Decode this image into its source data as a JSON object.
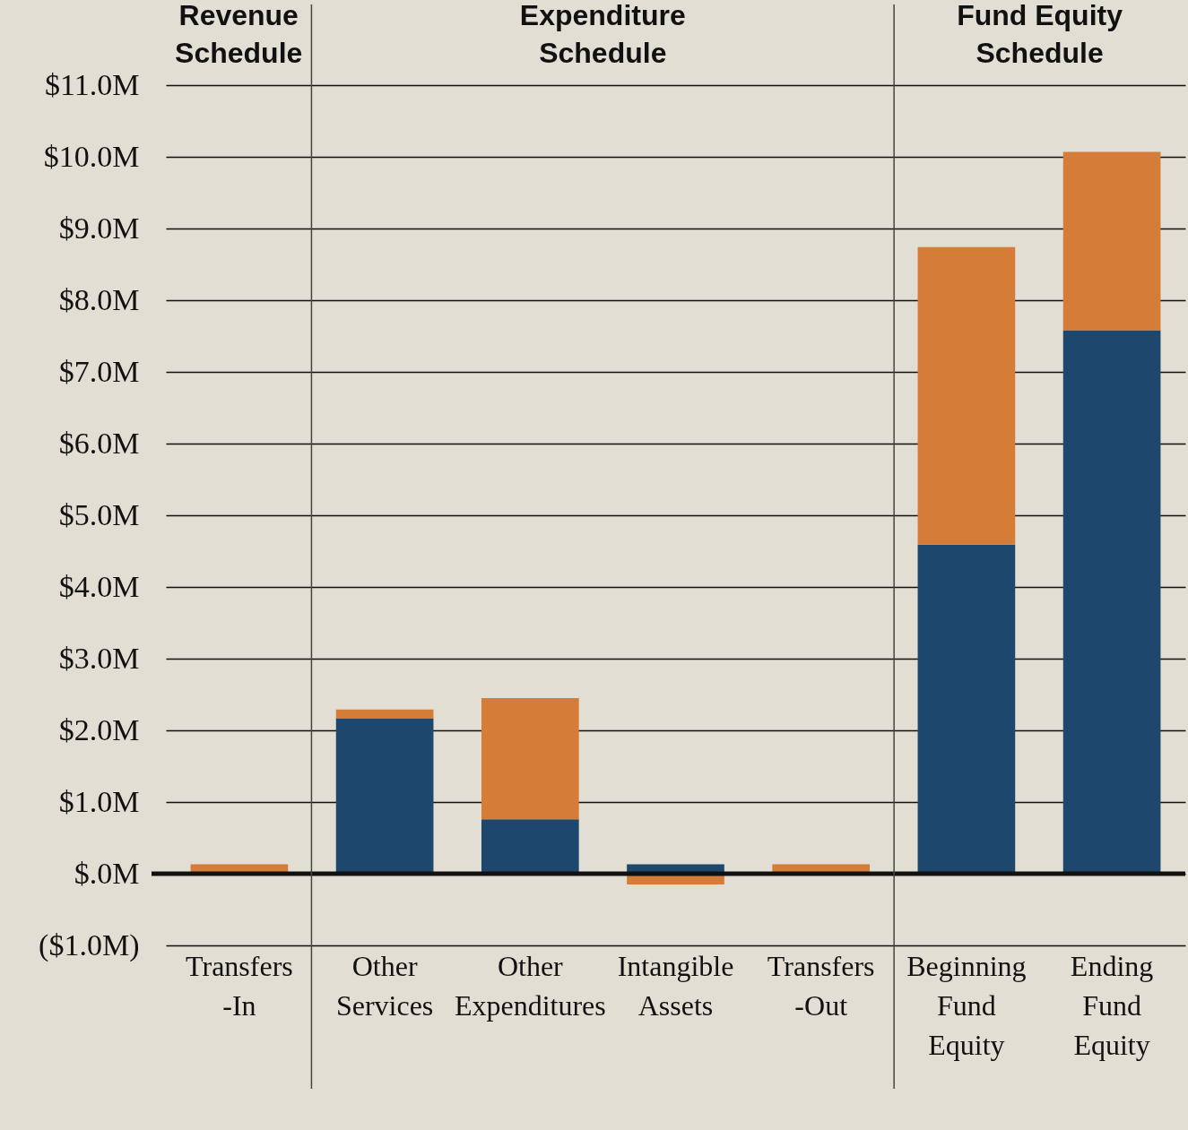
{
  "chart_data": {
    "type": "bar",
    "stacked": true,
    "categories": [
      "Transfers -In",
      "Other Services",
      "Other Expenditures",
      "Intangible Assets",
      "Transfers -Out",
      "Beginning Fund Equity",
      "Ending Fund Equity"
    ],
    "series": [
      {
        "color": "#1d476d",
        "values": [
          0,
          2.17,
          0.76,
          0.13,
          0,
          4.59,
          7.58
        ]
      },
      {
        "color": "#d47c38",
        "values": [
          0.13,
          0.12,
          1.69,
          -0.15,
          0.13,
          4.15,
          2.49
        ]
      }
    ],
    "ylim": [
      -1.0,
      11.0
    ],
    "yticks": [
      {
        "value": -1,
        "label": "($1.0M)"
      },
      {
        "value": 0,
        "label": "$.0M"
      },
      {
        "value": 1,
        "label": "$1.0M"
      },
      {
        "value": 2,
        "label": "$2.0M"
      },
      {
        "value": 3,
        "label": "$3.0M"
      },
      {
        "value": 4,
        "label": "$4.0M"
      },
      {
        "value": 5,
        "label": "$5.0M"
      },
      {
        "value": 6,
        "label": "$6.0M"
      },
      {
        "value": 7,
        "label": "$7.0M"
      },
      {
        "value": 8,
        "label": "$8.0M"
      },
      {
        "value": 9,
        "label": "$9.0M"
      },
      {
        "value": 10,
        "label": "$10.0M"
      },
      {
        "value": 11,
        "label": "$11.0M"
      }
    ],
    "grid": "y",
    "ref_lines": [
      {
        "axis": "y",
        "value": 0,
        "color": "#111111"
      }
    ],
    "annotations": [
      "Revenue Schedule",
      "Expenditure Schedule",
      "Fund Equity Schedule"
    ]
  }
}
